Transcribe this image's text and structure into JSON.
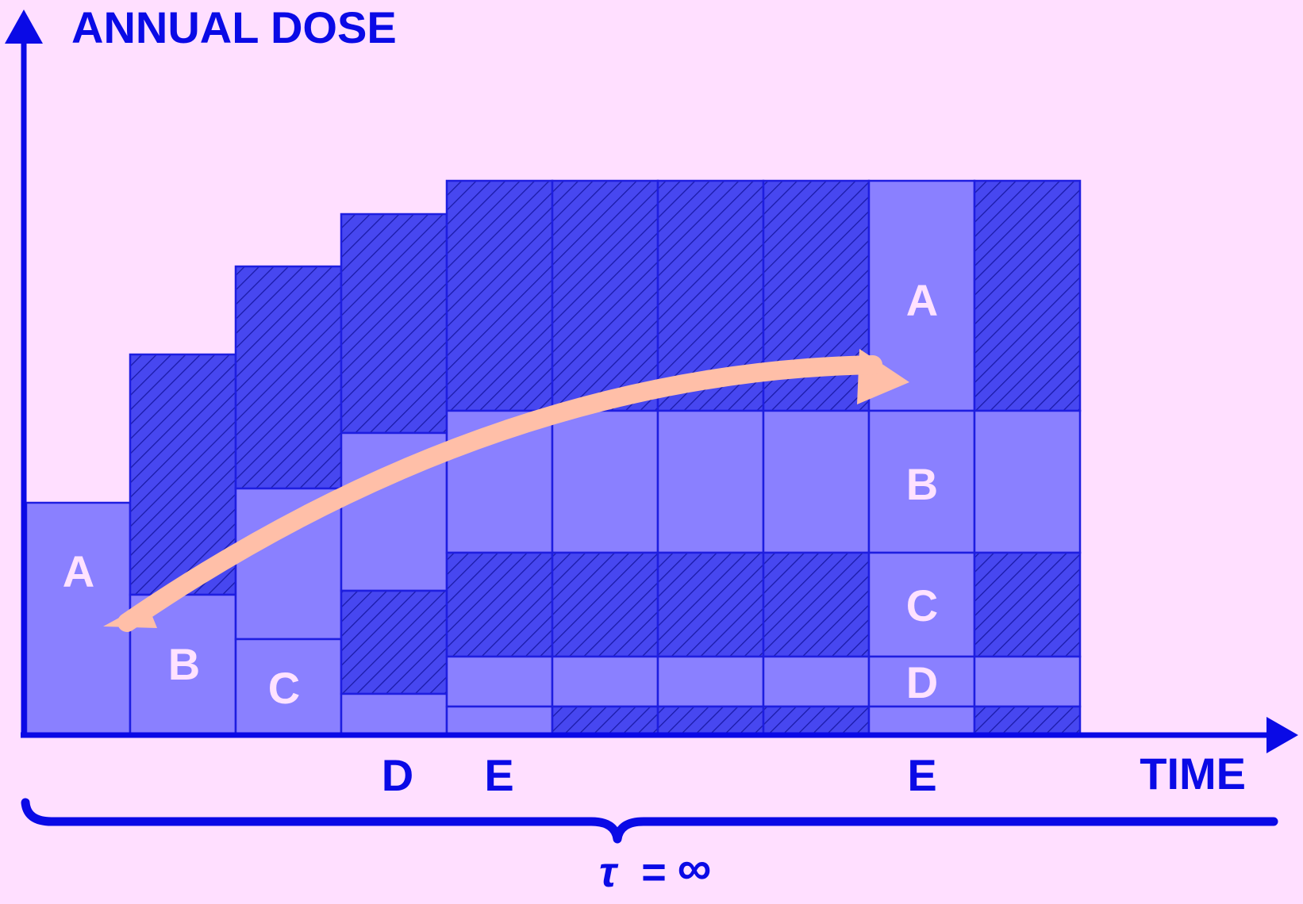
{
  "colors": {
    "background": "#ffdfff",
    "axis": "#0a0ae6",
    "block_fill": "#8a80ff",
    "hatched_fill": "#4747f0",
    "hatch_line": "#1a1aa8",
    "block_stroke": "#1e1ee0",
    "block_label": "#ffe2ff",
    "arrow": "#ffbfa8",
    "text": "#0a0ae6"
  },
  "labels": {
    "y_axis": "ANNUAL DOSE",
    "x_axis": "TIME",
    "tau_symbol": "τ",
    "tau_equals": "=",
    "tau_value": "∞"
  },
  "time_labels": [
    "D",
    "E",
    "E"
  ],
  "block_labels": [
    "A",
    "B",
    "C",
    "A",
    "B",
    "C",
    "D"
  ],
  "diagram": {
    "columns": 10,
    "components": [
      "A",
      "B",
      "C",
      "D",
      "E"
    ],
    "hatched_blocks": "earlier contributions",
    "plain_blocks": "new contributions"
  }
}
